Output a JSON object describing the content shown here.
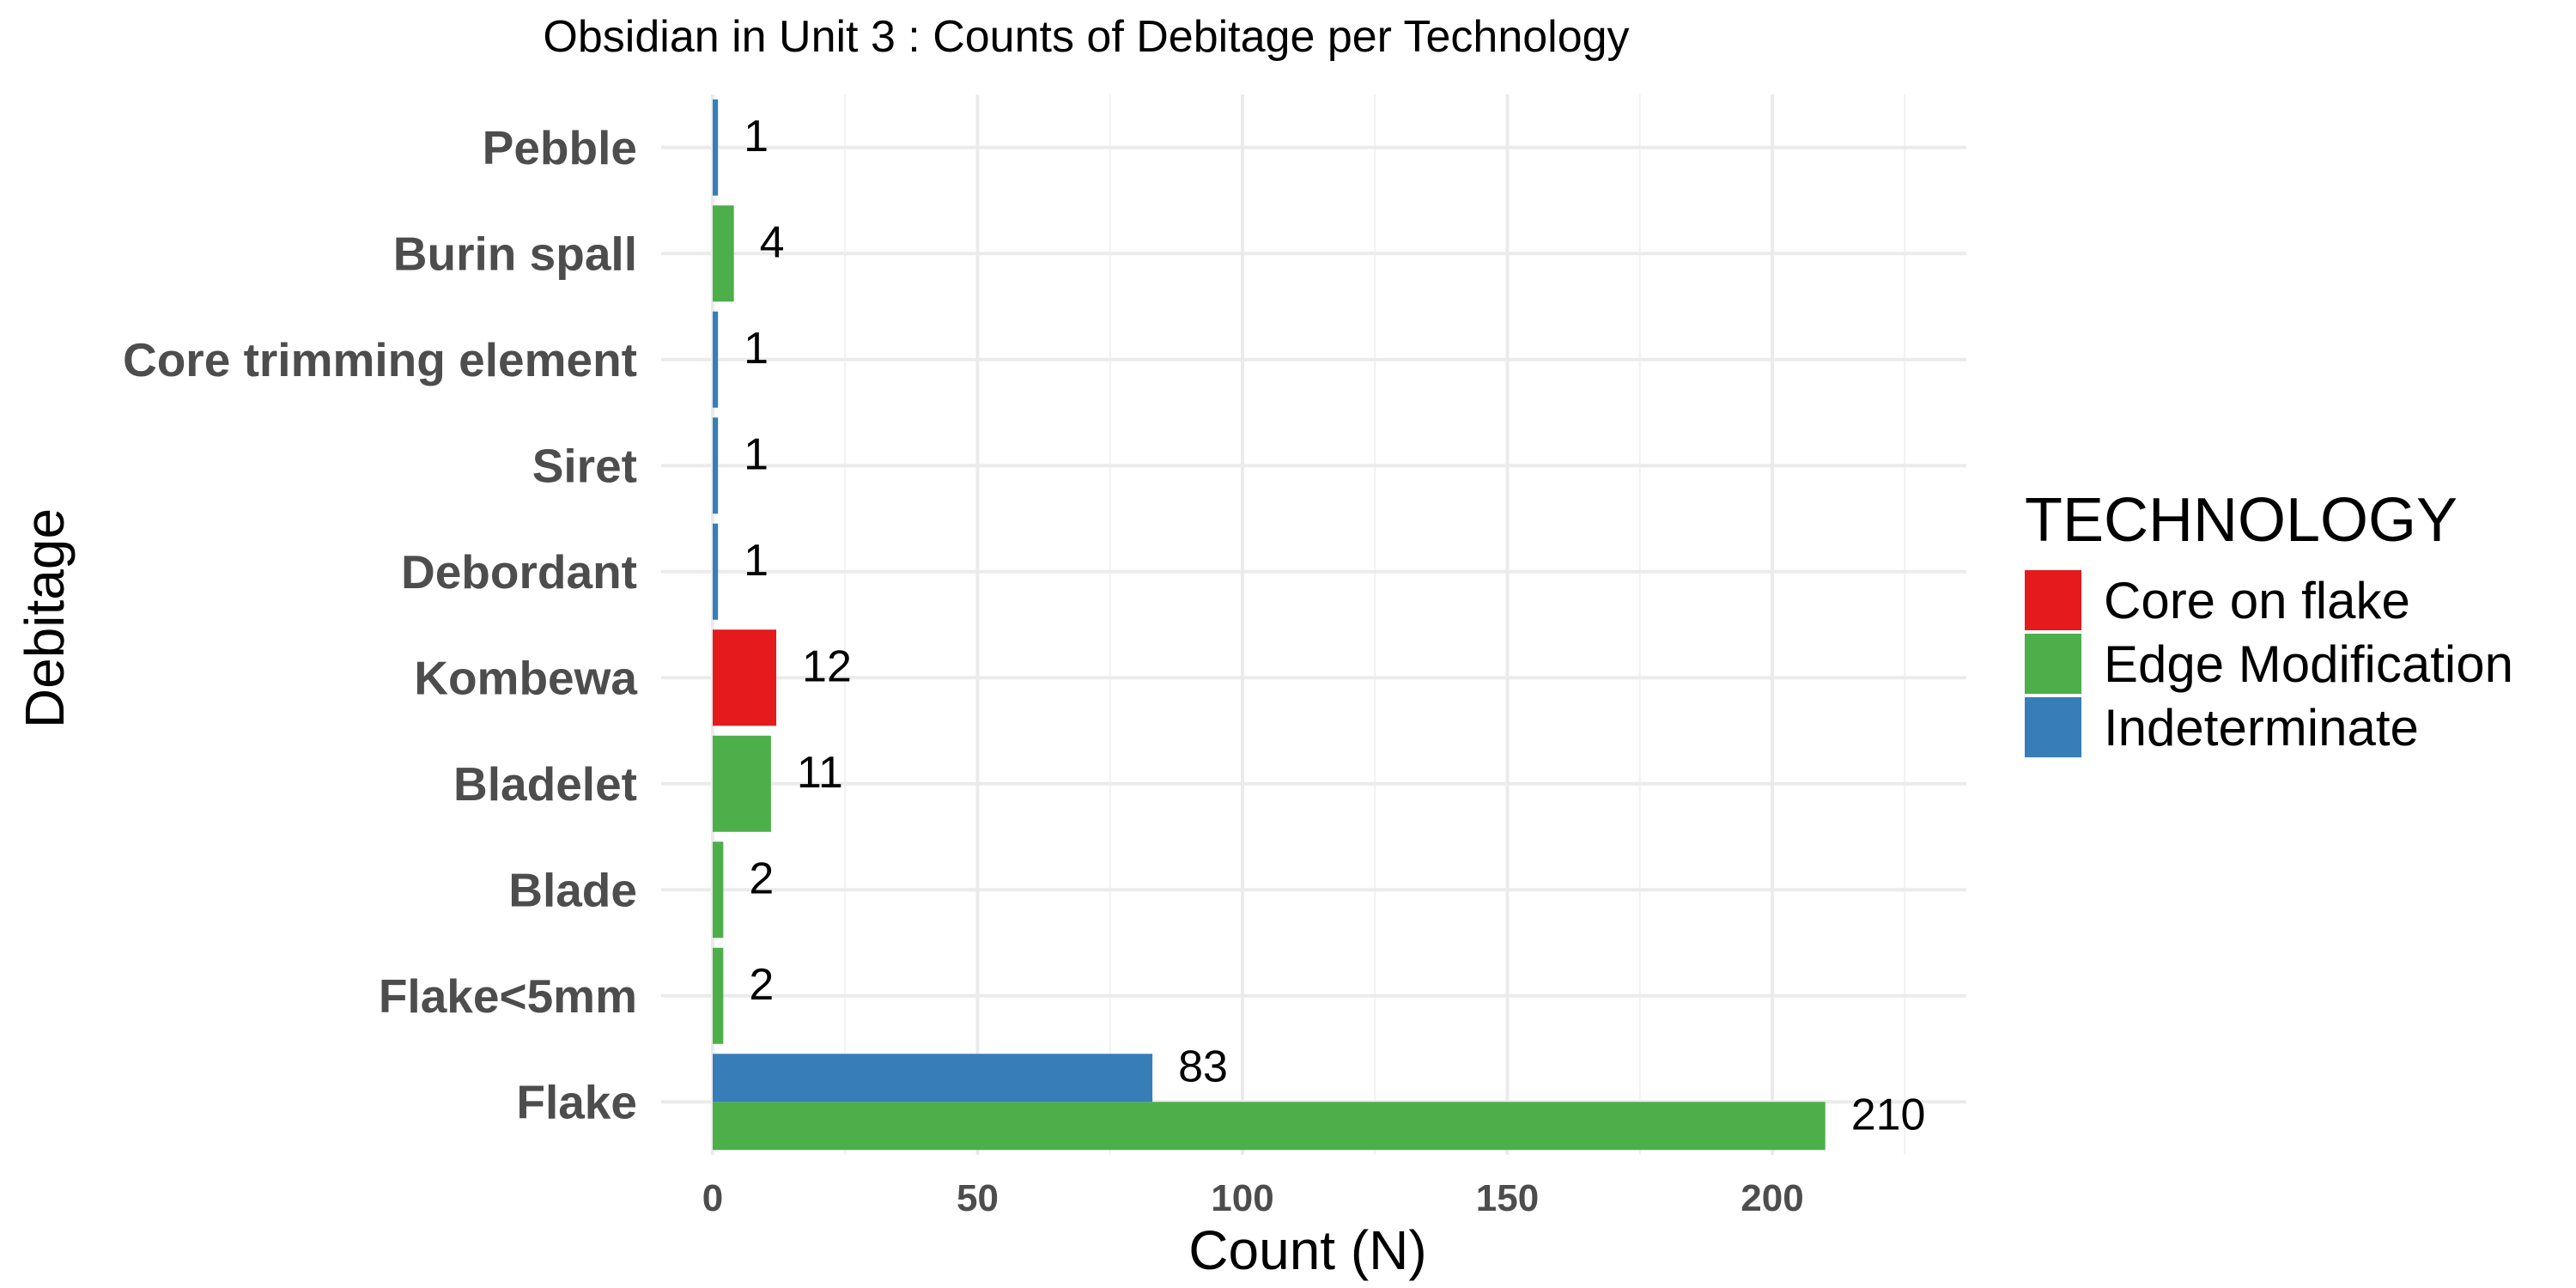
{
  "chart_data": {
    "type": "bar",
    "orientation": "horizontal",
    "title": "Obsidian in Unit 3 : Counts of Debitage per Technology",
    "xlabel": "Count (N)",
    "ylabel": "Debitage",
    "xlim": [
      0,
      225
    ],
    "x_ticks": [
      0,
      50,
      100,
      150,
      200
    ],
    "grid": true,
    "categories": [
      "Pebble",
      "Burin spall",
      "Core trimming element",
      "Siret",
      "Debordant",
      "Kombewa",
      "Bladelet",
      "Blade",
      "Flake<5mm",
      "Flake"
    ],
    "legend": {
      "title": "TECHNOLOGY",
      "placement": "right",
      "items": [
        "Core on flake",
        "Edge Modification",
        "Indeterminate"
      ]
    },
    "series": [
      {
        "name": "Core on flake",
        "color": "#e41a1c",
        "values": [
          null,
          null,
          null,
          null,
          null,
          12,
          null,
          null,
          null,
          null
        ]
      },
      {
        "name": "Edge Modification",
        "color": "#4daf4a",
        "values": [
          null,
          4,
          null,
          null,
          null,
          null,
          11,
          2,
          2,
          210
        ]
      },
      {
        "name": "Indeterminate",
        "color": "#377eb8",
        "values": [
          1,
          null,
          1,
          1,
          1,
          null,
          null,
          null,
          null,
          83
        ]
      }
    ]
  }
}
